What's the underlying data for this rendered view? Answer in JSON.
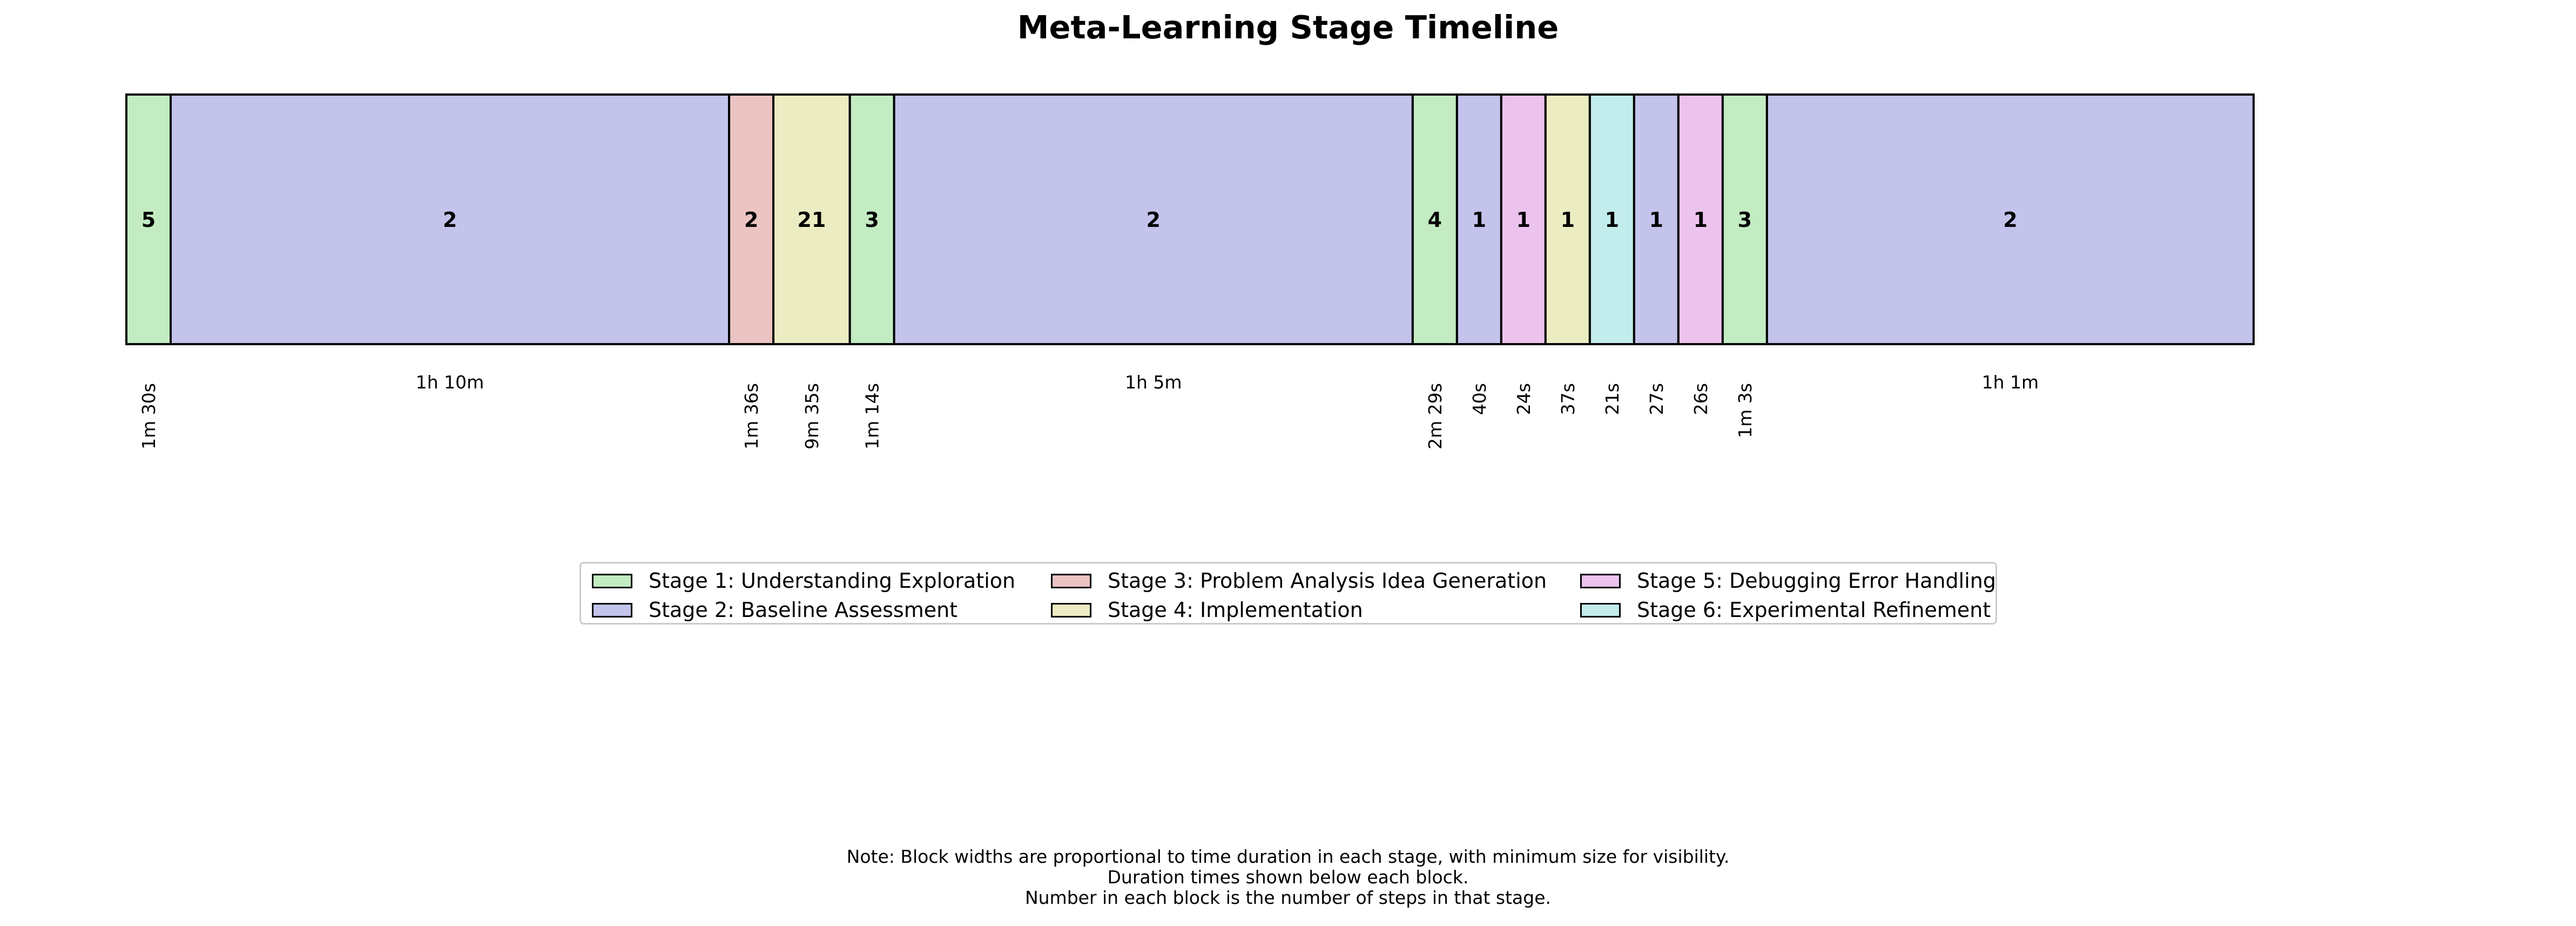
{
  "chart_data": {
    "type": "timeline",
    "title": "Meta-Learning Stage Timeline",
    "stage_colors": {
      "1": "#c3ecc3",
      "2": "#c3c3ec",
      "3": "#ecc3c3",
      "4": "#ececc3",
      "5": "#ecc3ec",
      "6": "#c3ecec"
    },
    "blocks": [
      {
        "stage": 1,
        "steps": "5",
        "duration": "1m 30s",
        "seconds": 90
      },
      {
        "stage": 2,
        "steps": "2",
        "duration": "1h 10m",
        "seconds": 4200
      },
      {
        "stage": 3,
        "steps": "2",
        "duration": "1m 36s",
        "seconds": 96
      },
      {
        "stage": 4,
        "steps": "21",
        "duration": "9m 35s",
        "seconds": 575
      },
      {
        "stage": 1,
        "steps": "3",
        "duration": "1m 14s",
        "seconds": 74
      },
      {
        "stage": 2,
        "steps": "2",
        "duration": "1h 5m",
        "seconds": 3900
      },
      {
        "stage": 1,
        "steps": "4",
        "duration": "2m 29s",
        "seconds": 149
      },
      {
        "stage": 2,
        "steps": "1",
        "duration": "40s",
        "seconds": 40
      },
      {
        "stage": 5,
        "steps": "1",
        "duration": "24s",
        "seconds": 24
      },
      {
        "stage": 4,
        "steps": "1",
        "duration": "37s",
        "seconds": 37
      },
      {
        "stage": 6,
        "steps": "1",
        "duration": "21s",
        "seconds": 21
      },
      {
        "stage": 2,
        "steps": "1",
        "duration": "27s",
        "seconds": 27
      },
      {
        "stage": 5,
        "steps": "1",
        "duration": "26s",
        "seconds": 26
      },
      {
        "stage": 1,
        "steps": "3",
        "duration": "1m 3s",
        "seconds": 63
      },
      {
        "stage": 2,
        "steps": "2",
        "duration": "1h 1m",
        "seconds": 3660
      }
    ],
    "legend": [
      {
        "stage": 1,
        "label": "Stage 1: Understanding Exploration"
      },
      {
        "stage": 2,
        "label": "Stage 2: Baseline Assessment"
      },
      {
        "stage": 3,
        "label": "Stage 3: Problem Analysis Idea Generation"
      },
      {
        "stage": 4,
        "label": "Stage 4: Implementation"
      },
      {
        "stage": 5,
        "label": "Stage 5: Debugging Error Handling"
      },
      {
        "stage": 6,
        "label": "Stage 6: Experimental Refinement"
      }
    ],
    "legend_position": "center",
    "note_lines": [
      "Note: Block widths are proportional to time duration in each stage, with minimum size for visibility.",
      "Duration times shown below each block.",
      "Number in each block is the number of steps in that stage."
    ]
  }
}
